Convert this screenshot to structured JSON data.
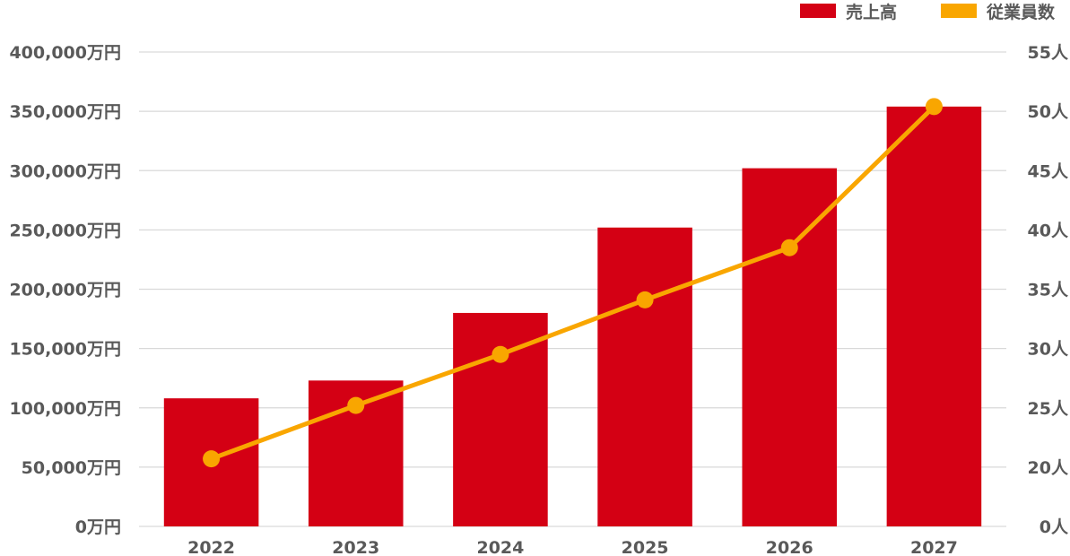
{
  "chart_data": {
    "type": "bar+line",
    "categories": [
      "2022",
      "2023",
      "2024",
      "2025",
      "2026",
      "2027"
    ],
    "series": [
      {
        "name": "売上高",
        "type": "bar",
        "axis": "left",
        "color": "#d40014",
        "values": [
          108000,
          123000,
          180000,
          252000,
          302000,
          354000
        ]
      },
      {
        "name": "従業員数",
        "type": "line",
        "axis": "right",
        "color": "#f9a600",
        "values": [
          20.7,
          25.2,
          29.5,
          34.1,
          38.5,
          50.4
        ]
      }
    ],
    "left_axis": {
      "ylim": [
        0,
        400000
      ],
      "ticks": [
        0,
        50000,
        100000,
        150000,
        200000,
        250000,
        300000,
        350000,
        400000
      ],
      "tick_labels": [
        "0万円",
        "50,000万円",
        "100,000万円",
        "150,000万円",
        "200,000万円",
        "250,000万円",
        "300,000万円",
        "350,000万円",
        "400,000万円"
      ]
    },
    "right_axis": {
      "tick_values": [
        0,
        20,
        25,
        30,
        35,
        40,
        45,
        50,
        55
      ],
      "tick_labels": [
        "0人",
        "20人",
        "25人",
        "30人",
        "35人",
        "40人",
        "45人",
        "50人",
        "55人"
      ],
      "note": "non-linear: first step 0→20, then 5 per gridline"
    },
    "legend": {
      "placement": "top-right",
      "items": [
        "売上高",
        "従業員数"
      ]
    },
    "grid": true
  }
}
